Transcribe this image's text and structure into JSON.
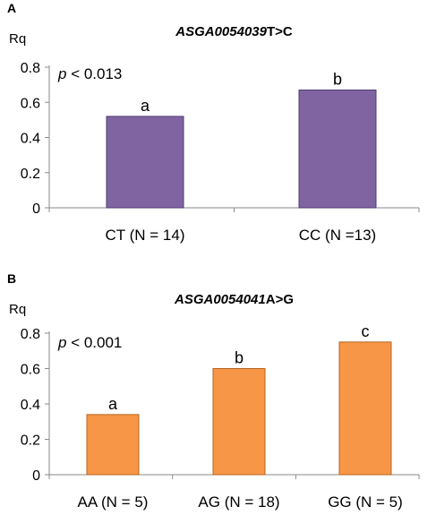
{
  "chart_data": [
    {
      "panel": "A",
      "type": "bar",
      "title_italic": "ASGA0054039",
      "title_rest": "T>C",
      "ylabel": "Rq",
      "ylim": [
        0,
        0.8
      ],
      "yticks": [
        "0",
        "0.2",
        "0.4",
        "0.6",
        "0.8"
      ],
      "annotation_prefix": "p",
      "annotation_rest": " < 0.013",
      "categories": [
        "CT (N = 14)",
        "CC (N =13)"
      ],
      "values": [
        0.52,
        0.67
      ],
      "labels": [
        "a",
        "b"
      ],
      "color": "#8064a2",
      "edge_color": "#4f3a73"
    },
    {
      "panel": "B",
      "type": "bar",
      "title_italic": "ASGA0054041",
      "title_rest": "A>G",
      "ylabel": "Rq",
      "ylim": [
        0,
        0.8
      ],
      "yticks": [
        "0",
        "0.2",
        "0.4",
        "0.6",
        "0.8"
      ],
      "annotation_prefix": "p",
      "annotation_rest": " < 0.001",
      "categories": [
        "AA (N = 5)",
        "AG (N = 18)",
        "GG (N = 5)"
      ],
      "values": [
        0.34,
        0.6,
        0.75
      ],
      "labels": [
        "a",
        "b",
        "c"
      ],
      "color": "#f79646",
      "edge_color": "#b7651f"
    }
  ]
}
